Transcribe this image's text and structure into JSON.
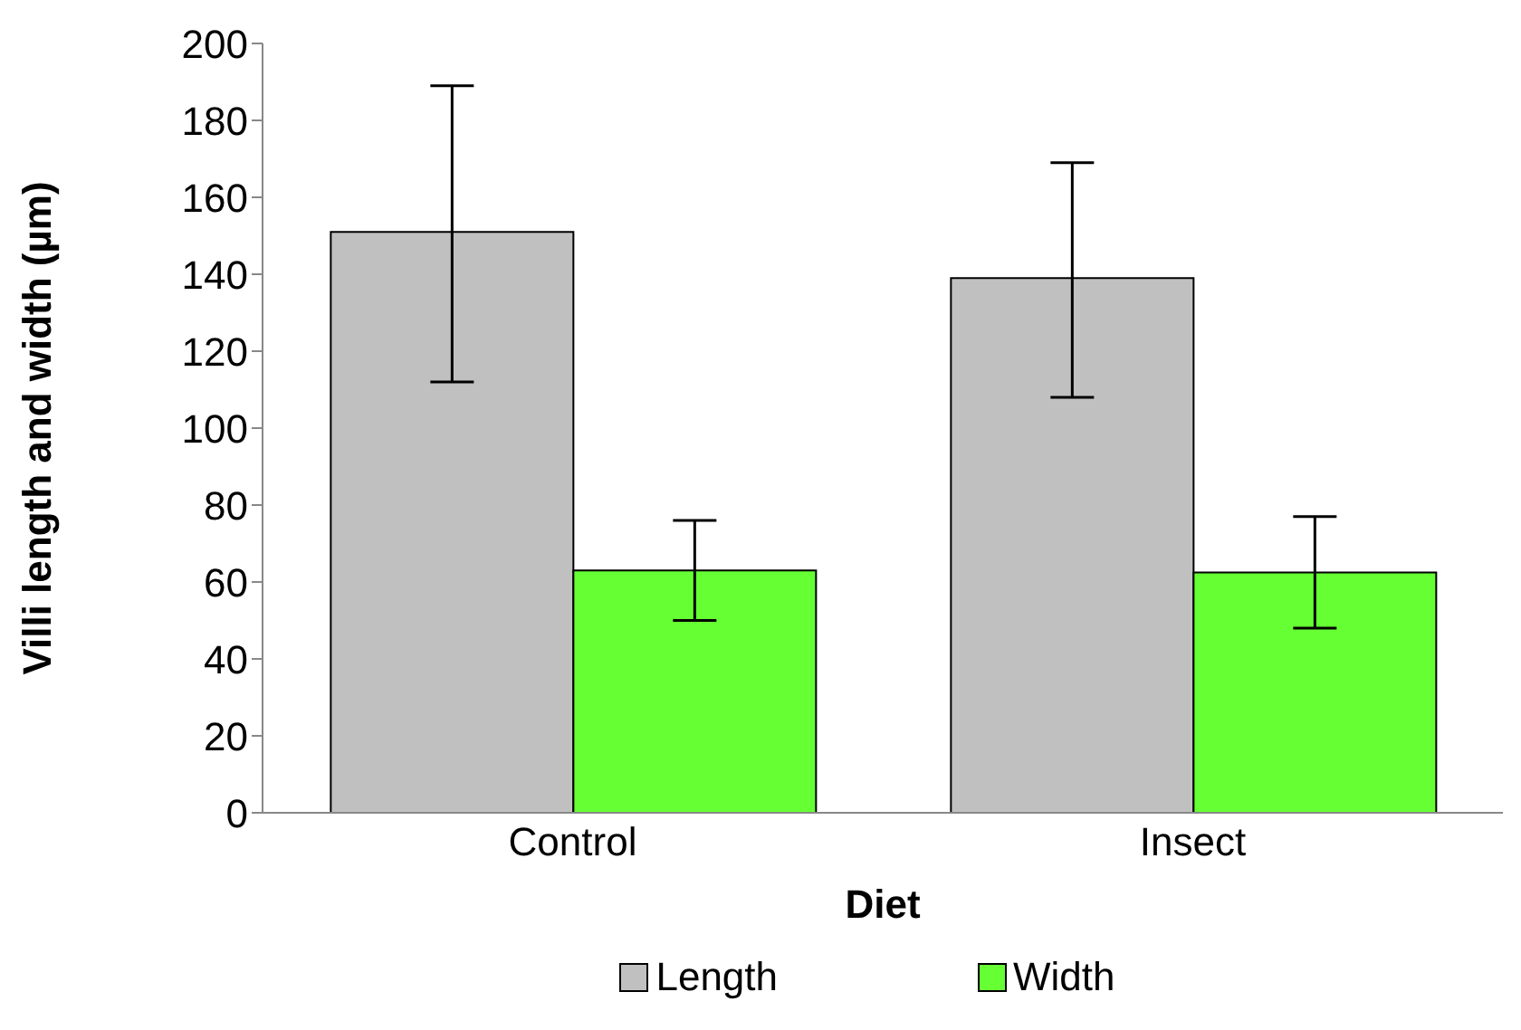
{
  "chart_data": {
    "type": "bar",
    "xlabel": "Diet",
    "ylabel": "Villi length and width (µm)",
    "categories": [
      "Control",
      "Insect"
    ],
    "series": [
      {
        "name": "Length",
        "color": "#c0c0c0",
        "values": [
          151,
          139
        ],
        "errors": [
          [
            112,
            189
          ],
          [
            108,
            169
          ]
        ]
      },
      {
        "name": "Width",
        "color": "#66ff33",
        "values": [
          63,
          62.5
        ],
        "errors": [
          [
            50,
            76
          ],
          [
            48,
            77
          ]
        ]
      }
    ],
    "ylim": [
      0,
      200
    ],
    "yticks": [
      0,
      20,
      40,
      60,
      80,
      100,
      120,
      140,
      160,
      180,
      200
    ],
    "grid": false,
    "legend": "bottom"
  }
}
